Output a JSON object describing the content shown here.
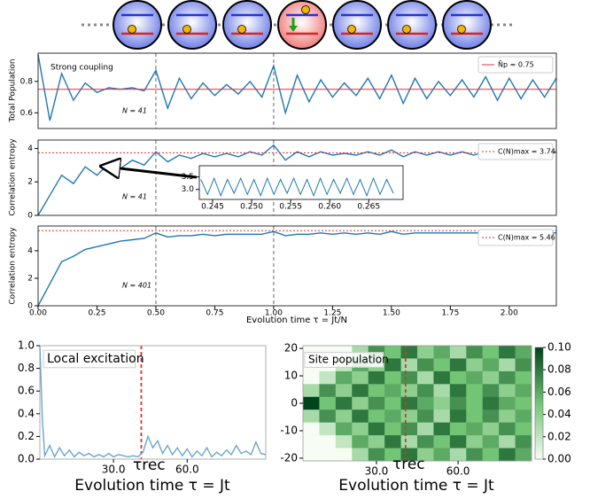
{
  "chart_data": [
    {
      "type": "line",
      "ylabel": "Total Population",
      "annotations": [
        "Strong coupling",
        "N = 41"
      ],
      "x": [
        0,
        0.05,
        0.1,
        0.15,
        0.2,
        0.25,
        0.3,
        0.35,
        0.4,
        0.45,
        0.5,
        0.55,
        0.6,
        0.65,
        0.7,
        0.75,
        0.8,
        0.85,
        0.9,
        0.95,
        1,
        1.05,
        1.1,
        1.15,
        1.2,
        1.25,
        1.3,
        1.35,
        1.4,
        1.45,
        1.5,
        1.55,
        1.6,
        1.65,
        1.7,
        1.75,
        1.8,
        1.85,
        1.9,
        1.95,
        2,
        2.05,
        2.1,
        2.15,
        2.2
      ],
      "values": [
        0.97,
        0.55,
        0.85,
        0.68,
        0.79,
        0.73,
        0.76,
        0.75,
        0.76,
        0.74,
        0.87,
        0.63,
        0.82,
        0.69,
        0.79,
        0.71,
        0.78,
        0.72,
        0.8,
        0.7,
        0.9,
        0.6,
        0.84,
        0.67,
        0.81,
        0.7,
        0.79,
        0.71,
        0.82,
        0.69,
        0.84,
        0.66,
        0.82,
        0.69,
        0.8,
        0.71,
        0.81,
        0.7,
        0.83,
        0.68,
        0.82,
        0.69,
        0.81,
        0.7,
        0.82
      ],
      "color": "#1f77b4",
      "xlim": [
        0,
        2.2
      ],
      "ylim": [
        0.5,
        0.98
      ],
      "yticks": [
        0.6,
        0.8
      ],
      "hline": {
        "value": 0.75,
        "label": "N̄p = 0.75",
        "color": "#e03030",
        "style": "solid"
      },
      "vlines": [
        0.5,
        1
      ]
    },
    {
      "type": "line",
      "ylabel": "Correlation entropy",
      "annotations": [
        "N = 41"
      ],
      "x": [
        0,
        0.05,
        0.1,
        0.15,
        0.2,
        0.25,
        0.3,
        0.35,
        0.4,
        0.45,
        0.5,
        0.55,
        0.6,
        0.65,
        0.7,
        0.75,
        0.8,
        0.85,
        0.9,
        0.95,
        1,
        1.05,
        1.1,
        1.15,
        1.2,
        1.25,
        1.3,
        1.35,
        1.4,
        1.45,
        1.5,
        1.55,
        1.6,
        1.65,
        1.7,
        1.75,
        1.8,
        1.85,
        1.9,
        1.95,
        2,
        2.05,
        2.1,
        2.15,
        2.2
      ],
      "values": [
        0,
        1.2,
        2.4,
        1.9,
        2.9,
        2.4,
        3.1,
        2.8,
        3.3,
        3,
        3.8,
        3.2,
        3.6,
        3.4,
        3.7,
        3.5,
        3.7,
        3.5,
        3.8,
        3.6,
        4.2,
        3.3,
        3.8,
        3.5,
        3.8,
        3.6,
        3.7,
        3.6,
        3.8,
        3.6,
        3.9,
        3.5,
        3.8,
        3.6,
        3.8,
        3.6,
        3.8,
        3.6,
        3.8,
        3.6,
        3.9,
        3.6,
        3.8,
        3.6,
        3.8
      ],
      "color": "#1f77b4",
      "xlim": [
        0,
        2.2
      ],
      "ylim": [
        0,
        4.5
      ],
      "yticks": [
        0,
        2,
        4
      ],
      "hline": {
        "value": 3.74,
        "label": "C(N)max = 3.74",
        "color": "#e03030",
        "style": "dotted"
      },
      "vlines": [
        0.5,
        1
      ]
    },
    {
      "type": "line",
      "ylabel": "Correlation entropy",
      "xlabel": "Evolution time τ = Jt/N",
      "annotations": [
        "N = 401"
      ],
      "x": [
        0,
        0.05,
        0.1,
        0.15,
        0.2,
        0.25,
        0.3,
        0.35,
        0.4,
        0.45,
        0.5,
        0.55,
        0.6,
        0.65,
        0.7,
        0.75,
        0.8,
        0.85,
        0.9,
        0.95,
        1,
        1.05,
        1.1,
        1.15,
        1.2,
        1.25,
        1.3,
        1.35,
        1.4,
        1.45,
        1.5,
        1.55,
        1.6,
        1.65,
        1.7,
        1.75,
        1.8,
        1.85,
        1.9,
        1.95,
        2,
        2.05,
        2.1,
        2.15,
        2.2
      ],
      "values": [
        0,
        1.6,
        3.2,
        3.6,
        4.1,
        4.3,
        4.5,
        4.7,
        4.8,
        4.9,
        5.3,
        5,
        5.1,
        5.1,
        5.2,
        5.1,
        5.2,
        5.2,
        5.2,
        5.2,
        5.4,
        5.1,
        5.2,
        5.2,
        5.3,
        5.2,
        5.3,
        5.2,
        5.3,
        5.2,
        5.4,
        5.2,
        5.3,
        5.3,
        5.3,
        5.3,
        5.3,
        5.3,
        5.3,
        5.3,
        5.4,
        5.3,
        5.3,
        5.3,
        5.3
      ],
      "color": "#1f77b4",
      "xlim": [
        0,
        2.2
      ],
      "ylim": [
        0,
        5.8
      ],
      "yticks": [
        0,
        2,
        4
      ],
      "xticks": [
        {
          "value": 0,
          "label": "0.00"
        },
        0.25,
        {
          "value": 0.5,
          "label": "0.50"
        },
        0.75,
        {
          "value": 1,
          "label": "1.00"
        },
        1.25,
        {
          "value": 1.5,
          "label": "1.50"
        },
        1.75,
        {
          "value": 2,
          "label": "2.00"
        }
      ],
      "hline": {
        "value": 5.46,
        "label": "C(N)max = 5.46",
        "color": "#e03030",
        "style": "dotted"
      },
      "vlines": [
        0.5,
        1
      ]
    },
    {
      "type": "line",
      "x": [
        0.2435,
        0.24435,
        0.2452,
        0.24605,
        0.2469,
        0.24775,
        0.2486,
        0.24945,
        0.2503,
        0.25115,
        0.252,
        0.25285,
        0.2537,
        0.25455,
        0.2554,
        0.25625,
        0.2571,
        0.25795,
        0.2588,
        0.25965,
        0.2605,
        0.26135,
        0.2622,
        0.26305,
        0.2639,
        0.26475,
        0.2656,
        0.26645,
        0.2673,
        0.26815
      ],
      "values": [
        3.4,
        2.8,
        3.45,
        2.75,
        3.4,
        2.85,
        3.45,
        2.8,
        3.4,
        2.75,
        3.45,
        2.8,
        3.4,
        2.85,
        3.45,
        2.8,
        3.4,
        2.75,
        3.45,
        2.8,
        3.4,
        2.85,
        3.45,
        2.8,
        3.4,
        2.75,
        3.45,
        2.8,
        3.4,
        2.85
      ],
      "color": "#1f77b4",
      "xlim": [
        0.2433,
        0.2694
      ],
      "ylim": [
        2.6,
        3.95
      ],
      "yticks": [
        {
          "value": 3,
          "label": "3.0"
        },
        3.5
      ],
      "xticks": [
        0.245,
        {
          "value": 0.25,
          "label": "0.250"
        },
        0.255,
        {
          "value": 0.26,
          "label": "0.260"
        },
        0.265
      ]
    },
    {
      "type": "line",
      "xlabel": "Evolution time τ = Jt",
      "annotations": [
        "Local excitation",
        "τrec"
      ],
      "x": [
        0,
        1,
        2,
        4,
        6,
        8,
        10,
        12,
        14,
        16,
        18,
        20,
        22,
        24,
        26,
        28,
        30,
        32,
        34,
        36,
        38,
        40,
        42,
        44,
        46,
        48,
        50,
        52,
        54,
        56,
        58,
        60,
        62,
        64,
        66,
        68,
        70,
        72,
        74,
        76,
        78,
        80,
        82,
        84,
        86,
        88,
        90,
        92
      ],
      "values": [
        1,
        0.35,
        0.03,
        0.12,
        0.02,
        0.1,
        0.03,
        0.08,
        0.02,
        0.06,
        0.03,
        0.05,
        0.02,
        0.04,
        0.02,
        0.05,
        0.02,
        0.04,
        0.03,
        0.02,
        0.03,
        0.02,
        0.06,
        0.2,
        0.1,
        0.16,
        0.05,
        0.12,
        0.04,
        0.1,
        0.03,
        0.09,
        0.02,
        0.07,
        0.03,
        0.1,
        0.02,
        0.06,
        0.03,
        0.08,
        0.04,
        0.12,
        0.05,
        0.07,
        0.04,
        0.15,
        0.05,
        0.04
      ],
      "color": "#6aa6cf",
      "xlim": [
        0,
        92
      ],
      "ylim": [
        0,
        1
      ],
      "yticks": [
        {
          "value": 0,
          "label": "0.0"
        },
        0.2,
        0.4,
        0.6,
        0.8,
        {
          "value": 1,
          "label": "1.0"
        }
      ],
      "xticks": [
        {
          "value": 30,
          "label": "30.0"
        },
        {
          "value": 60,
          "label": "60.0"
        }
      ],
      "vlines": [
        41.3
      ],
      "vline_color": "#e03030"
    },
    {
      "type": "heatmap",
      "xlabel": "Evolution time τ = Jt",
      "annotations": [
        "Site population",
        "τrec"
      ],
      "z": [
        [
          0,
          0,
          0,
          0.03,
          0.07,
          0.05,
          0.08,
          0.04,
          0.06,
          0.03,
          0.07,
          0.05,
          0.08,
          0.06
        ],
        [
          0,
          0,
          0.02,
          0.06,
          0.04,
          0.08,
          0.03,
          0.07,
          0.05,
          0.08,
          0.04,
          0.06,
          0.03,
          0.07
        ],
        [
          0,
          0.02,
          0.06,
          0.04,
          0.08,
          0.05,
          0.07,
          0.03,
          0.08,
          0.05,
          0.06,
          0.04,
          0.07,
          0.05
        ],
        [
          0.03,
          0.07,
          0.04,
          0.08,
          0.05,
          0.06,
          0.04,
          0.07,
          0.03,
          0.08,
          0.05,
          0.07,
          0.04,
          0.06
        ],
        [
          0.1,
          0.05,
          0.08,
          0.04,
          0.07,
          0.05,
          0.08,
          0.06,
          0.04,
          0.07,
          0.05,
          0.08,
          0.06,
          0.05
        ],
        [
          0.03,
          0.07,
          0.04,
          0.08,
          0.05,
          0.06,
          0.04,
          0.07,
          0.03,
          0.08,
          0.05,
          0.07,
          0.04,
          0.06
        ],
        [
          0,
          0.02,
          0.06,
          0.04,
          0.08,
          0.05,
          0.07,
          0.03,
          0.08,
          0.05,
          0.06,
          0.04,
          0.07,
          0.05
        ],
        [
          0,
          0,
          0.02,
          0.06,
          0.04,
          0.08,
          0.03,
          0.07,
          0.05,
          0.08,
          0.04,
          0.06,
          0.03,
          0.07
        ],
        [
          0,
          0,
          0,
          0.03,
          0.07,
          0.05,
          0.08,
          0.04,
          0.06,
          0.03,
          0.07,
          0.05,
          0.08,
          0.06
        ]
      ],
      "xlim": [
        3,
        87
      ],
      "ylim": [
        -21,
        21
      ],
      "yticks": [
        20,
        10,
        0,
        -10,
        -20
      ],
      "xticks": [
        {
          "value": 30,
          "label": "30.0"
        },
        {
          "value": 60,
          "label": "60.0"
        }
      ],
      "clim": [
        0,
        0.1
      ],
      "cticks": [
        {
          "value": 0,
          "label": "0.00"
        },
        0.02,
        0.04,
        0.06,
        0.08,
        {
          "value": 0.1,
          "label": "0.10"
        }
      ],
      "vlines": [
        40.7
      ],
      "vline_color": "#b5452f"
    }
  ]
}
